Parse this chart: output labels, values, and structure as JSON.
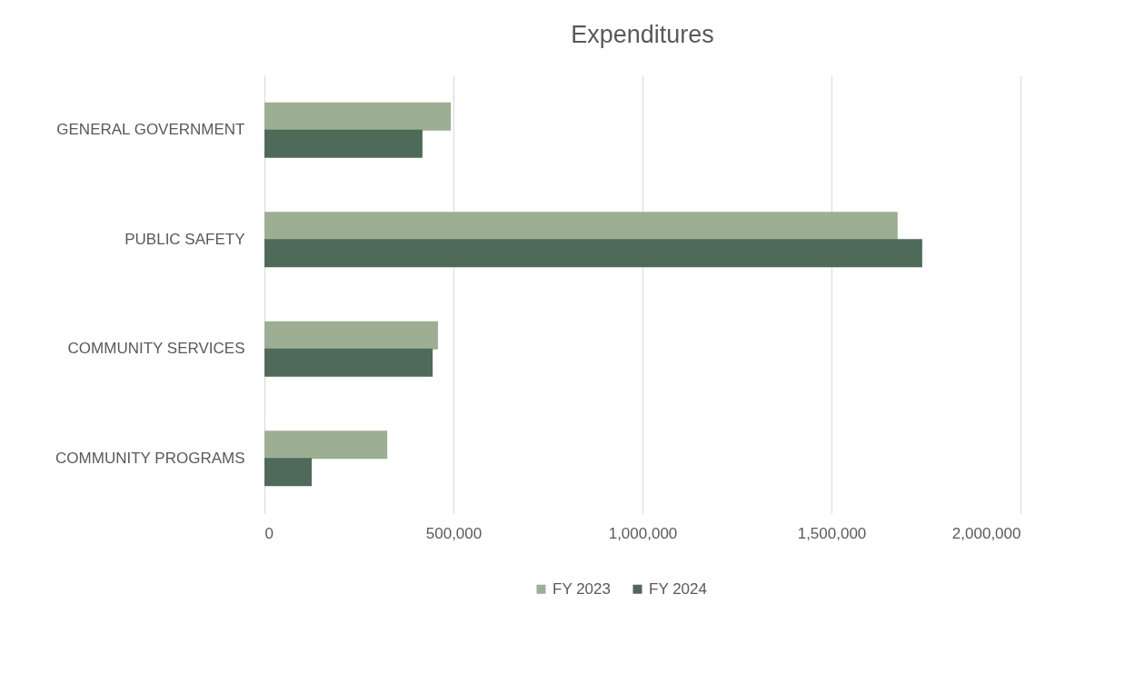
{
  "chart_data": {
    "type": "bar",
    "title": "Expenditures",
    "orientation": "horizontal",
    "categories": [
      "GENERAL GOVERNMENT",
      "PUBLIC SAFETY",
      "COMMUNITY SERVICES",
      "COMMUNITY PROGRAMS"
    ],
    "series": [
      {
        "name": "FY 2023",
        "color": "#9caf92",
        "values": [
          493000,
          1675000,
          459000,
          325000
        ]
      },
      {
        "name": "FY 2024",
        "color": "#4d6b58",
        "values": [
          418000,
          1740000,
          445000,
          125000
        ]
      }
    ],
    "xlim": [
      0,
      2000000
    ],
    "xticks": [
      0,
      {
        "value": 500000,
        "label": "500,000"
      },
      {
        "value": 1000000,
        "label": "1,000,000"
      },
      {
        "value": 1500000,
        "label": "1,500,000"
      },
      {
        "value": 2000000,
        "label": "2,000,000"
      }
    ],
    "grid": "x",
    "legend": "bottom"
  }
}
